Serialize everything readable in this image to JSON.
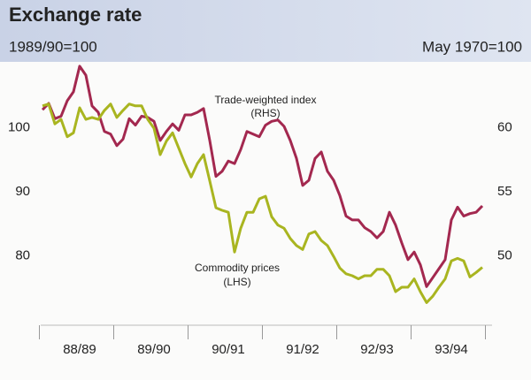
{
  "chart_data": {
    "type": "line",
    "title": "Exchange rate",
    "subtitle_left": "1989/90=100",
    "subtitle_right": "May 1970=100",
    "annotations": [
      "Trade-weighted index",
      "(RHS)",
      "Commodity prices",
      "(LHS)"
    ],
    "categories": [
      null,
      null,
      null,
      null,
      null,
      null,
      "88/89",
      null,
      null,
      null,
      null,
      null,
      null,
      null,
      null,
      null,
      null,
      null,
      "89/90",
      null,
      null,
      null,
      null,
      null,
      null,
      null,
      null,
      null,
      null,
      null,
      "90/91",
      null,
      null,
      null,
      null,
      null,
      null,
      null,
      null,
      null,
      null,
      null,
      "91/92",
      null,
      null,
      null,
      null,
      null,
      null,
      null,
      null,
      null,
      null,
      null,
      "92/93",
      null,
      null,
      null,
      null,
      null,
      null,
      null,
      null,
      null,
      null,
      null,
      "93/94",
      null,
      null,
      null,
      null,
      null
    ],
    "ylim": [
      70,
      110
    ],
    "yticks": [
      80,
      90,
      100
    ],
    "y2lim": [
      45,
      65
    ],
    "y2ticks": [
      50,
      55,
      60
    ],
    "series": [
      {
        "name": "Trade-weighted index",
        "color": "#a3284f",
        "axis": "y2",
        "values": [
          61.4,
          61.9,
          60.7,
          60.9,
          62.1,
          62.8,
          64.8,
          64.1,
          61.7,
          61.2,
          59.7,
          59.5,
          58.6,
          59.1,
          60.7,
          60.2,
          60.9,
          60.8,
          60.5,
          59.0,
          59.7,
          60.3,
          59.8,
          61.0,
          61.0,
          61.2,
          61.5,
          59.0,
          56.2,
          56.6,
          57.4,
          57.2,
          58.3,
          59.7,
          59.5,
          59.3,
          60.2,
          60.5,
          60.6,
          60.1,
          59.0,
          57.6,
          55.5,
          55.9,
          57.6,
          58.1,
          56.6,
          55.9,
          54.7,
          53.1,
          52.8,
          52.8,
          52.2,
          51.9,
          51.4,
          51.9,
          53.4,
          52.4,
          51.0,
          49.7,
          50.3,
          49.3,
          47.6,
          48.3,
          49.0,
          49.7,
          52.8,
          53.8,
          53.1,
          53.3,
          53.4,
          53.9
        ]
      },
      {
        "name": "Commodity prices",
        "color": "#a9b520",
        "values": [
          103.4,
          103.7,
          100.6,
          101.3,
          98.6,
          99.2,
          103.1,
          101.3,
          101.6,
          101.3,
          102.7,
          103.7,
          101.6,
          102.7,
          103.7,
          103.4,
          103.4,
          101.3,
          99.9,
          95.8,
          97.9,
          99.2,
          96.8,
          94.4,
          92.3,
          94.4,
          95.8,
          91.7,
          87.5,
          87.1,
          86.8,
          80.6,
          84.3,
          86.8,
          86.8,
          88.9,
          89.3,
          86.1,
          84.8,
          84.3,
          82.7,
          81.6,
          81.0,
          83.4,
          83.8,
          82.4,
          81.6,
          79.9,
          78.1,
          77.2,
          76.9,
          76.4,
          76.9,
          76.9,
          77.9,
          77.9,
          76.9,
          74.4,
          75.1,
          75.1,
          76.4,
          74.4,
          72.7,
          73.7,
          75.1,
          76.4,
          79.2,
          79.6,
          79.2,
          76.7,
          77.4,
          78.2
        ]
      }
    ]
  }
}
